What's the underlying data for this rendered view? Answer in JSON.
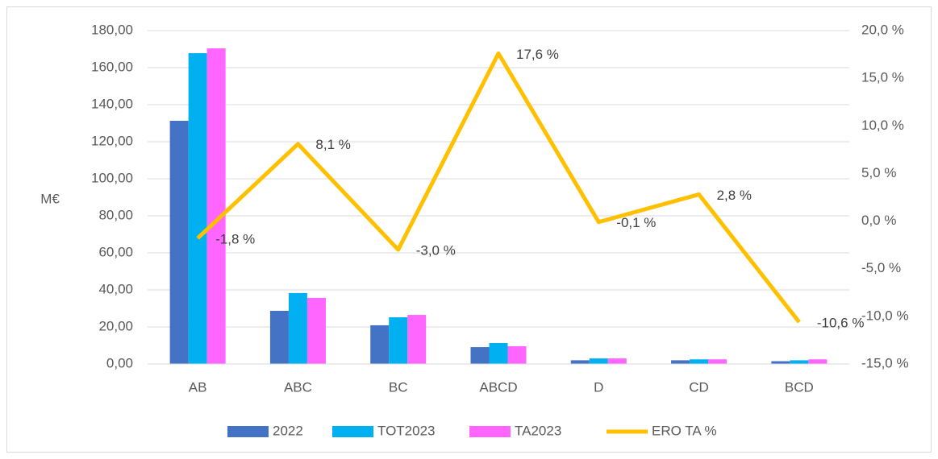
{
  "chart_data": {
    "type": "bar",
    "y_label": "M€",
    "categories": [
      "AB",
      "ABC",
      "BC",
      "ABCD",
      "D",
      "CD",
      "BCD"
    ],
    "series": [
      {
        "name": "2022",
        "color": "#4472c4",
        "type": "bar",
        "values": [
          131.3,
          28.7,
          20.9,
          9.1,
          2.0,
          2.0,
          1.5
        ]
      },
      {
        "name": "TOT2023",
        "color": "#00b0f0",
        "type": "bar",
        "values": [
          167.8,
          38.3,
          25.2,
          11.3,
          3.0,
          2.5,
          2.0
        ]
      },
      {
        "name": "TA2023",
        "color": "#ff66ff",
        "type": "bar",
        "values": [
          170.4,
          35.7,
          26.5,
          9.6,
          3.0,
          2.5,
          2.5
        ]
      },
      {
        "name": "ERO TA %",
        "color": "#ffc000",
        "type": "line",
        "axis": "y2",
        "values": [
          -1.8,
          8.1,
          -3.0,
          17.6,
          -0.1,
          2.8,
          -10.6
        ],
        "value_labels": [
          "-1,8 %",
          "8,1 %",
          "-3,0 %",
          "17,6 %",
          "-0,1 %",
          "2,8 %",
          "-10,6 %"
        ]
      }
    ],
    "ylim": [
      0,
      180
    ],
    "yticks": [
      {
        "value": 0,
        "label": "0,00"
      },
      {
        "value": 20,
        "label": "20,00"
      },
      {
        "value": 40,
        "label": "40,00"
      },
      {
        "value": 60,
        "label": "60,00"
      },
      {
        "value": 80,
        "label": "80,00"
      },
      {
        "value": 100,
        "label": "100,00"
      },
      {
        "value": 120,
        "label": "120,00"
      },
      {
        "value": 140,
        "label": "140,00"
      },
      {
        "value": 160,
        "label": "160,00"
      },
      {
        "value": 180,
        "label": "180,00"
      }
    ],
    "y2lim": [
      -15,
      20
    ],
    "y2ticks": [
      {
        "value": -15,
        "label": "-15,0 %"
      },
      {
        "value": -10,
        "label": "-10,0 %"
      },
      {
        "value": -5,
        "label": "-5,0 %"
      },
      {
        "value": 0,
        "label": "0,0 %"
      },
      {
        "value": 5,
        "label": "5,0 %"
      },
      {
        "value": 10,
        "label": "10,0 %"
      },
      {
        "value": 15,
        "label": "15,0 %"
      },
      {
        "value": 20,
        "label": "20,0 %"
      }
    ],
    "grid": true,
    "legend": "bottom"
  }
}
